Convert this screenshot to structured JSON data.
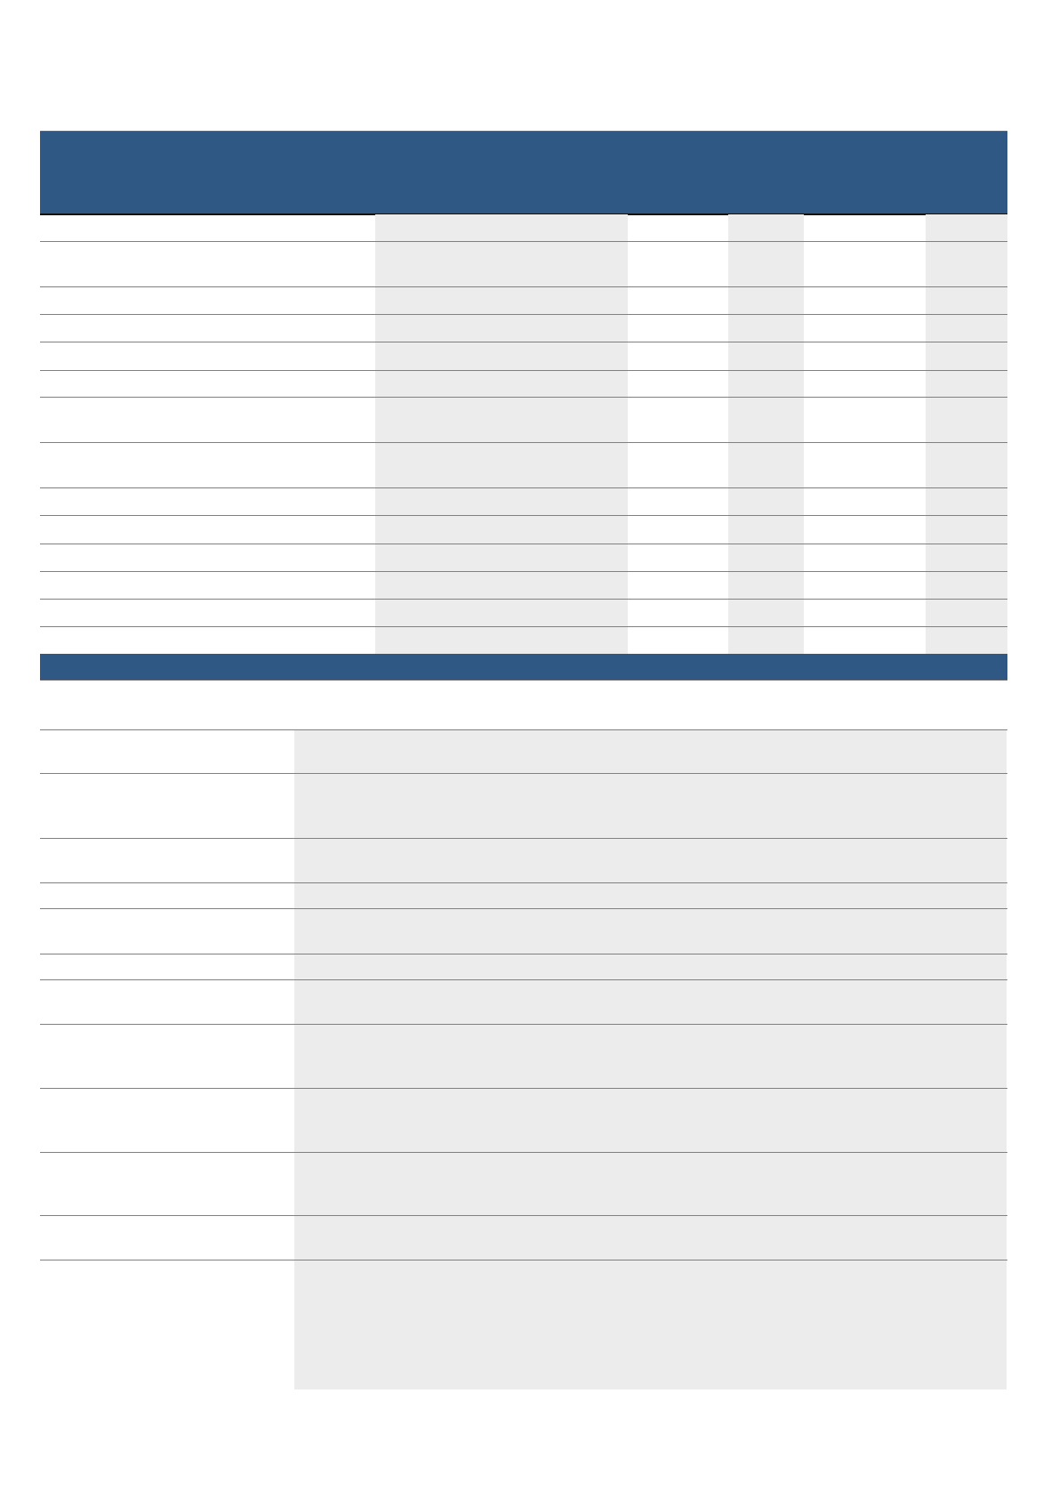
{
  "colors": {
    "header": "#2f5984",
    "cell_shade": "#ececec",
    "rule": "#808080"
  }
}
